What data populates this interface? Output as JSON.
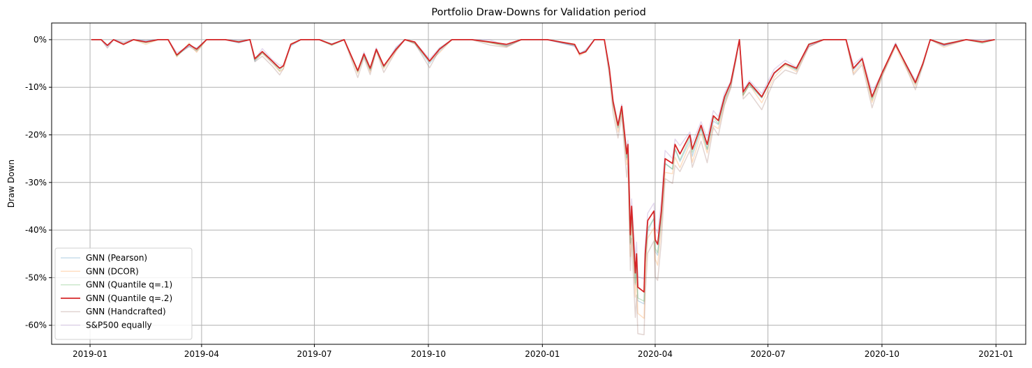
{
  "chart_data": {
    "type": "line",
    "title": "Portfolio Draw-Downs for Validation period",
    "xlabel": "",
    "ylabel": "Draw Down",
    "xlim": [
      "2018-12-01",
      "2021-01-25"
    ],
    "ylim": [
      -0.64,
      0.035
    ],
    "x_ticks": [
      "2019-01-01",
      "2019-04-01",
      "2019-07-01",
      "2019-10-01",
      "2020-01-01",
      "2020-04-01",
      "2020-07-01",
      "2020-10-01",
      "2021-01-01"
    ],
    "x_tick_labels": [
      "2019-01",
      "2019-04",
      "2019-07",
      "2019-10",
      "2020-01",
      "2020-04",
      "2020-07",
      "2020-10",
      "2021-01"
    ],
    "y_ticks": [
      0,
      -0.1,
      -0.2,
      -0.3,
      -0.4,
      -0.5,
      -0.6
    ],
    "y_tick_labels": [
      "0%",
      "-10%",
      "-20%",
      "-30%",
      "-40%",
      "-50%",
      "-60%"
    ],
    "grid": true,
    "legend_position": "lower-left",
    "colors": {
      "pearson": "#1f77b4",
      "dcor": "#ff7f0e",
      "quantile_1": "#2ca02c",
      "quantile_2": "#d62728",
      "handcrafted": "#8c564b",
      "sp500": "#9467bd"
    },
    "series": [
      {
        "name": "GNN (Pearson)",
        "key": "pearson",
        "color": "#1f77b4",
        "opacity": 0.25,
        "offset_scale": 1.05,
        "jitter": 0.004
      },
      {
        "name": "GNN (DCOR)",
        "key": "dcor",
        "color": "#ff7f0e",
        "opacity": 0.25,
        "offset_scale": 1.1,
        "jitter": 0.005
      },
      {
        "name": "GNN (Quantile q=.1)",
        "key": "quantile_1",
        "color": "#2ca02c",
        "opacity": 0.25,
        "offset_scale": 1.04,
        "jitter": 0.003
      },
      {
        "name": "GNN (Quantile q=.2)",
        "key": "quantile_2",
        "color": "#d62728",
        "opacity": 1.0,
        "offset_scale": 1.0,
        "jitter": 0
      },
      {
        "name": "GNN (Handcrafted)",
        "key": "handcrafted",
        "color": "#8c564b",
        "opacity": 0.25,
        "offset_scale": 1.18,
        "jitter": 0.006
      },
      {
        "name": "S&P500 equally",
        "key": "sp500",
        "color": "#9467bd",
        "opacity": 0.25,
        "offset_scale": 0.95,
        "jitter": 0.005
      }
    ],
    "base_points": [
      [
        "2019-01-02",
        0
      ],
      [
        "2019-01-10",
        0
      ],
      [
        "2019-01-15",
        -0.012
      ],
      [
        "2019-01-20",
        0
      ],
      [
        "2019-01-28",
        -0.01
      ],
      [
        "2019-02-05",
        0
      ],
      [
        "2019-02-15",
        -0.005
      ],
      [
        "2019-02-25",
        0
      ],
      [
        "2019-03-05",
        0
      ],
      [
        "2019-03-12",
        -0.032
      ],
      [
        "2019-03-22",
        -0.01
      ],
      [
        "2019-03-28",
        -0.02
      ],
      [
        "2019-04-05",
        0
      ],
      [
        "2019-04-20",
        0
      ],
      [
        "2019-05-01",
        -0.005
      ],
      [
        "2019-05-10",
        0
      ],
      [
        "2019-05-14",
        -0.04
      ],
      [
        "2019-05-20",
        -0.025
      ],
      [
        "2019-05-28",
        -0.045
      ],
      [
        "2019-06-03",
        -0.06
      ],
      [
        "2019-06-06",
        -0.055
      ],
      [
        "2019-06-12",
        -0.01
      ],
      [
        "2019-06-20",
        0
      ],
      [
        "2019-07-05",
        0
      ],
      [
        "2019-07-15",
        -0.01
      ],
      [
        "2019-07-25",
        0
      ],
      [
        "2019-08-05",
        -0.065
      ],
      [
        "2019-08-10",
        -0.03
      ],
      [
        "2019-08-15",
        -0.06
      ],
      [
        "2019-08-20",
        -0.02
      ],
      [
        "2019-08-26",
        -0.055
      ],
      [
        "2019-09-05",
        -0.02
      ],
      [
        "2019-09-12",
        0
      ],
      [
        "2019-09-20",
        -0.005
      ],
      [
        "2019-10-02",
        -0.045
      ],
      [
        "2019-10-10",
        -0.02
      ],
      [
        "2019-10-20",
        0
      ],
      [
        "2019-11-05",
        0
      ],
      [
        "2019-11-20",
        -0.005
      ],
      [
        "2019-12-03",
        -0.01
      ],
      [
        "2019-12-15",
        0
      ],
      [
        "2020-01-05",
        0
      ],
      [
        "2020-01-27",
        -0.01
      ],
      [
        "2020-01-31",
        -0.03
      ],
      [
        "2020-02-05",
        -0.025
      ],
      [
        "2020-02-12",
        0
      ],
      [
        "2020-02-20",
        0
      ],
      [
        "2020-02-24",
        -0.06
      ],
      [
        "2020-02-27",
        -0.13
      ],
      [
        "2020-03-02",
        -0.18
      ],
      [
        "2020-03-05",
        -0.14
      ],
      [
        "2020-03-09",
        -0.24
      ],
      [
        "2020-03-10",
        -0.22
      ],
      [
        "2020-03-12",
        -0.41
      ],
      [
        "2020-03-13",
        -0.35
      ],
      [
        "2020-03-16",
        -0.49
      ],
      [
        "2020-03-17",
        -0.45
      ],
      [
        "2020-03-18",
        -0.52
      ],
      [
        "2020-03-23",
        -0.53
      ],
      [
        "2020-03-24",
        -0.45
      ],
      [
        "2020-03-26",
        -0.38
      ],
      [
        "2020-03-31",
        -0.36
      ],
      [
        "2020-04-01",
        -0.42
      ],
      [
        "2020-04-03",
        -0.43
      ],
      [
        "2020-04-06",
        -0.36
      ],
      [
        "2020-04-09",
        -0.25
      ],
      [
        "2020-04-15",
        -0.26
      ],
      [
        "2020-04-17",
        -0.22
      ],
      [
        "2020-04-21",
        -0.24
      ],
      [
        "2020-04-29",
        -0.2
      ],
      [
        "2020-05-01",
        -0.23
      ],
      [
        "2020-05-08",
        -0.18
      ],
      [
        "2020-05-13",
        -0.22
      ],
      [
        "2020-05-18",
        -0.16
      ],
      [
        "2020-05-22",
        -0.17
      ],
      [
        "2020-05-27",
        -0.12
      ],
      [
        "2020-06-01",
        -0.09
      ],
      [
        "2020-06-05",
        -0.04
      ],
      [
        "2020-06-08",
        0
      ],
      [
        "2020-06-11",
        -0.11
      ],
      [
        "2020-06-16",
        -0.09
      ],
      [
        "2020-06-26",
        -0.12
      ],
      [
        "2020-07-06",
        -0.07
      ],
      [
        "2020-07-15",
        -0.05
      ],
      [
        "2020-07-24",
        -0.06
      ],
      [
        "2020-08-03",
        -0.01
      ],
      [
        "2020-08-15",
        0
      ],
      [
        "2020-09-02",
        0
      ],
      [
        "2020-09-08",
        -0.06
      ],
      [
        "2020-09-15",
        -0.04
      ],
      [
        "2020-09-23",
        -0.12
      ],
      [
        "2020-10-01",
        -0.07
      ],
      [
        "2020-10-12",
        -0.01
      ],
      [
        "2020-10-16",
        -0.03
      ],
      [
        "2020-10-28",
        -0.09
      ],
      [
        "2020-11-03",
        -0.05
      ],
      [
        "2020-11-09",
        0
      ],
      [
        "2020-11-20",
        -0.01
      ],
      [
        "2020-12-08",
        0
      ],
      [
        "2020-12-21",
        -0.005
      ],
      [
        "2020-12-31",
        0
      ]
    ]
  }
}
